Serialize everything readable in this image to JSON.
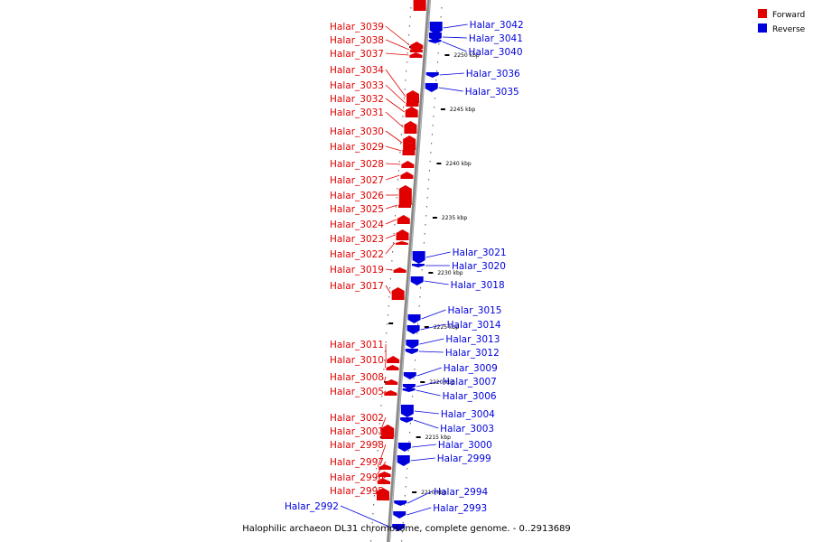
{
  "caption": "Halophilic archaeon DL31 chromosome, complete genome. - 0..2913689",
  "legend": {
    "placement": "top-right",
    "items": [
      {
        "label": "Forward",
        "color": "#e00000"
      },
      {
        "label": "Reverse",
        "color": "#0000dd"
      }
    ]
  },
  "ticks": [
    "2250 kbp",
    "2245 kbp",
    "2240 kbp",
    "2235 kbp",
    "2230 kbp",
    "2225 kbp",
    "2220 kbp",
    "2215 kbp",
    "2210 kbp"
  ],
  "forward_genes": [
    "Halar_3039",
    "Halar_3038",
    "Halar_3037",
    "Halar_3034",
    "Halar_3033",
    "Halar_3032",
    "Halar_3031",
    "Halar_3030",
    "Halar_3029",
    "Halar_3028",
    "Halar_3027",
    "Halar_3026",
    "Halar_3025",
    "Halar_3024",
    "Halar_3023",
    "Halar_3022",
    "Halar_3019",
    "Halar_3017",
    "Halar_3011",
    "Halar_3010",
    "Halar_3008",
    "Halar_3005",
    "Halar_3002",
    "Halar_3001",
    "Halar_2998",
    "Halar_2997",
    "Halar_2996",
    "Halar_2995"
  ],
  "reverse_genes": [
    "Halar_3042",
    "Halar_3041",
    "Halar_3040",
    "Halar_3036",
    "Halar_3035",
    "Halar_3021",
    "Halar_3020",
    "Halar_3018",
    "Halar_3015",
    "Halar_3014",
    "Halar_3013",
    "Halar_3012",
    "Halar_3009",
    "Halar_3007",
    "Halar_3006",
    "Halar_3004",
    "Halar_3003",
    "Halar_3000",
    "Halar_2999",
    "Halar_2994",
    "Halar_2993",
    "Halar_2992"
  ]
}
